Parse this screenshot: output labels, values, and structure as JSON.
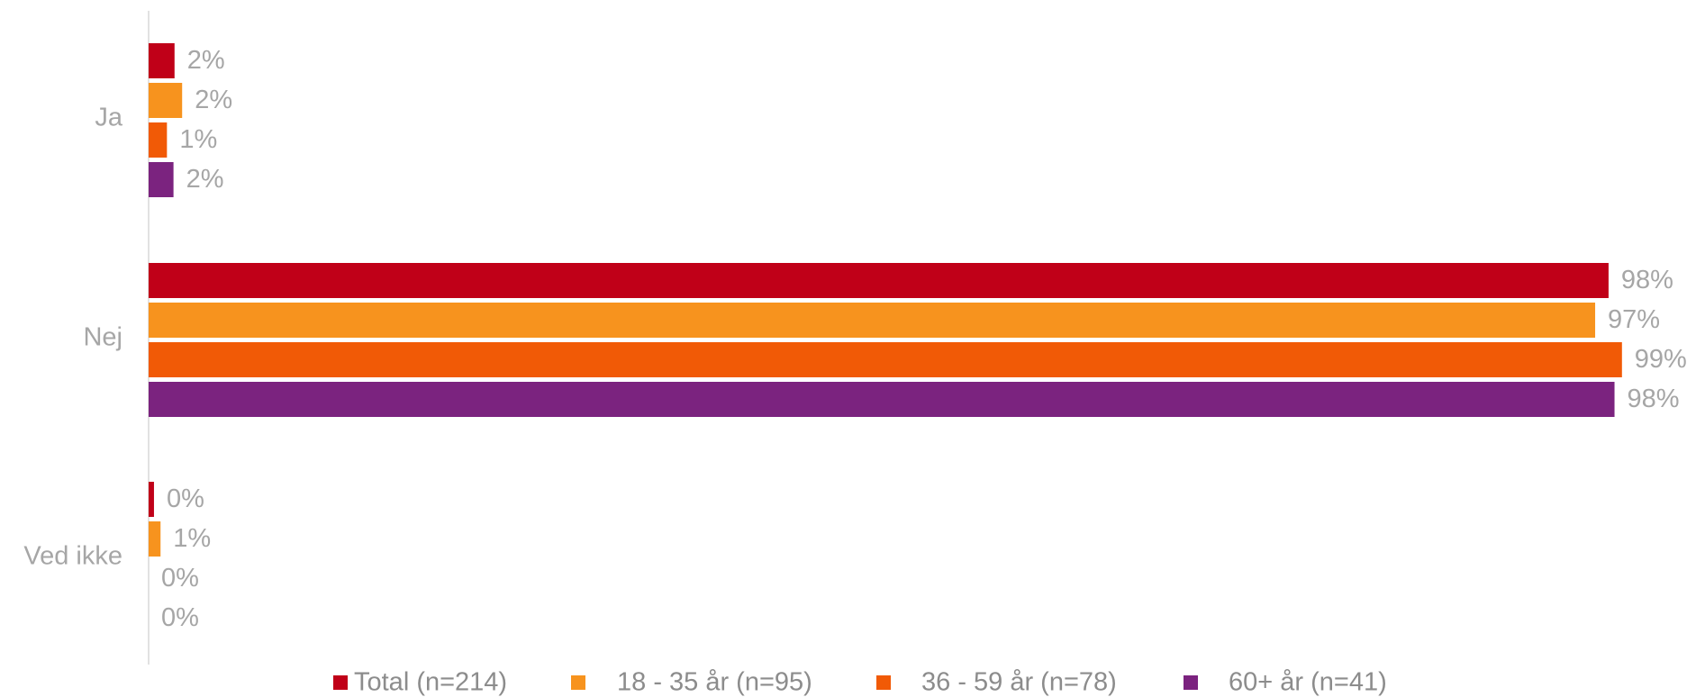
{
  "chart_data": {
    "type": "hbar",
    "categories": [
      "Ja",
      "Nej",
      "Ved ikke"
    ],
    "xlim": [
      0,
      100
    ],
    "series": [
      {
        "name": "Total (n=214)",
        "color": "#c00018",
        "values": [
          1.74,
          98.0,
          0.36
        ],
        "value_labels": [
          "2%",
          "98%",
          "0%"
        ]
      },
      {
        "name": "18 - 35 år (n=95)",
        "color": "#f7931e",
        "values": [
          2.25,
          97.1,
          0.8
        ],
        "value_labels": [
          "2%",
          "97%",
          "1%"
        ]
      },
      {
        "name": "36 - 59 år (n=78)",
        "color": "#f15a06",
        "values": [
          1.23,
          98.9,
          0
        ],
        "value_labels": [
          "1%",
          "99%",
          "0%"
        ]
      },
      {
        "name": "60+ år (n=41)",
        "color": "#7b237f",
        "values": [
          1.67,
          98.4,
          0
        ],
        "value_labels": [
          "2%",
          "98%",
          "0%"
        ]
      }
    ],
    "legend": "bottom"
  }
}
